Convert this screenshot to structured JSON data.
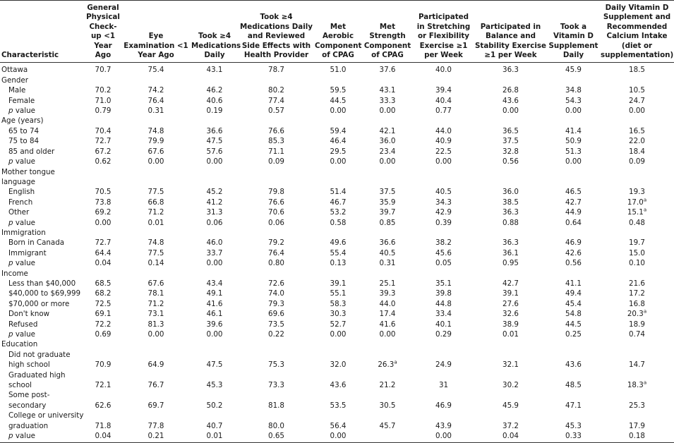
{
  "table": {
    "columns": [
      "Characteristic",
      "General Physical Check-up <1 Year Ago",
      "Eye Examination <1 Year Ago",
      "Took ≥4 Medications Daily",
      "Took ≥4 Medications Daily and Reviewed Side Effects with Health Provider",
      "Met Aerobic Component of CPAG",
      "Met Strength Component of CPAG",
      "Participated in Stretching or Flexibility Exercise ≥1 per Week",
      "Participated in Balance and Stability Exercise ≥1 per Week",
      "Took a Vitamin D Supplement Daily",
      "Daily Vitamin D Supplement and Recommended Calcium Intake (diet or supplementation)"
    ],
    "overall": {
      "label": "Ottawa",
      "cells": [
        "70.7",
        "75.4",
        "43.1",
        "78.7",
        "51.0",
        "37.6",
        "40.0",
        "36.3",
        "45.9",
        "18.5"
      ]
    },
    "groups": [
      {
        "title": "Gender",
        "rows": [
          {
            "label": "Male",
            "cells": [
              "70.2",
              "74.2",
              "46.2",
              "80.2",
              "59.5",
              "43.1",
              "39.4",
              "26.8",
              "34.8",
              "10.5"
            ]
          },
          {
            "label": "Female",
            "cells": [
              "71.0",
              "76.4",
              "40.6",
              "77.4",
              "44.5",
              "33.3",
              "40.4",
              "43.6",
              "54.3",
              "24.7"
            ]
          },
          {
            "label": "p value",
            "cells": [
              "0.79",
              "0.31",
              "0.19",
              "0.57",
              "0.00",
              "0.00",
              "0.77",
              "0.00",
              "0.00",
              "0.00"
            ]
          }
        ]
      },
      {
        "title": "Age (years)",
        "rows": [
          {
            "label": "65 to 74",
            "cells": [
              "70.4",
              "74.8",
              "36.6",
              "76.6",
              "59.4",
              "42.1",
              "44.0",
              "36.5",
              "41.4",
              "16.5"
            ]
          },
          {
            "label": "75 to 84",
            "cells": [
              "72.7",
              "79.9",
              "47.5",
              "85.3",
              "46.4",
              "36.0",
              "40.9",
              "37.5",
              "50.9",
              "22.0"
            ]
          },
          {
            "label": "85 and older",
            "cells": [
              "67.2",
              "67.6",
              "57.6",
              "71.1",
              "29.5",
              "23.4",
              "22.5",
              "32.8",
              "51.3",
              "18.4"
            ]
          },
          {
            "label": "p value",
            "cells": [
              "0.62",
              "0.00",
              "0.00",
              "0.09",
              "0.00",
              "0.00",
              "0.00",
              "0.56",
              "0.00",
              "0.09"
            ]
          }
        ]
      },
      {
        "title": "Mother tongue language",
        "rows": [
          {
            "label": "English",
            "cells": [
              "70.5",
              "77.5",
              "45.2",
              "79.8",
              "51.4",
              "37.5",
              "40.5",
              "36.0",
              "46.5",
              "19.3"
            ]
          },
          {
            "label": "French",
            "cells": [
              "73.8",
              "66.8",
              "41.2",
              "76.6",
              "46.7",
              "35.9",
              "34.3",
              "38.5",
              "42.7",
              {
                "text": "17.0",
                "note": "a"
              }
            ]
          },
          {
            "label": "Other",
            "cells": [
              "69.2",
              "71.2",
              "31.3",
              "70.6",
              "53.2",
              "39.7",
              "42.9",
              "36.3",
              "44.9",
              {
                "text": "15.1",
                "note": "a"
              }
            ]
          },
          {
            "label": "p value",
            "cells": [
              "0.00",
              "0.01",
              "0.06",
              "0.06",
              "0.58",
              "0.85",
              "0.39",
              "0.88",
              "0.64",
              "0.48"
            ]
          }
        ]
      },
      {
        "title": "Immigration",
        "rows": [
          {
            "label": "Born in Canada",
            "cells": [
              "72.7",
              "74.8",
              "46.0",
              "79.2",
              "49.6",
              "36.6",
              "38.2",
              "36.3",
              "46.9",
              "19.7"
            ]
          },
          {
            "label": "Immigrant",
            "cells": [
              "64.4",
              "77.5",
              "33.7",
              "76.4",
              "55.4",
              "40.5",
              "45.6",
              "36.1",
              "42.6",
              "15.0"
            ]
          },
          {
            "label": "p value",
            "cells": [
              "0.04",
              "0.14",
              "0.00",
              "0.80",
              "0.13",
              "0.31",
              "0.05",
              "0.95",
              "0.56",
              "0.10"
            ]
          }
        ]
      },
      {
        "title": "Income",
        "rows": [
          {
            "label": "Less than $40,000",
            "cells": [
              "68.5",
              "67.6",
              "43.4",
              "72.6",
              "39.1",
              "25.1",
              "35.1",
              "42.7",
              "41.1",
              "21.6"
            ]
          },
          {
            "label": "$40,000 to $69,999",
            "cells": [
              "68.2",
              "78.1",
              "49.1",
              "74.0",
              "55.1",
              "39.3",
              "39.8",
              "39.1",
              "49.4",
              "17.2"
            ]
          },
          {
            "label": "$70,000 or more",
            "cells": [
              "72.5",
              "71.2",
              "41.6",
              "79.3",
              "58.3",
              "44.0",
              "44.8",
              "27.6",
              "45.4",
              "16.8"
            ]
          },
          {
            "label": "Don't know",
            "cells": [
              "69.1",
              "73.1",
              "46.1",
              "69.6",
              "30.3",
              "17.4",
              "33.4",
              "32.6",
              "54.8",
              {
                "text": "20.3",
                "note": "a"
              }
            ]
          },
          {
            "label": "Refused",
            "cells": [
              "72.2",
              "81.3",
              "39.6",
              "73.5",
              "52.7",
              "41.6",
              "40.1",
              "38.9",
              "44.5",
              "18.9"
            ]
          },
          {
            "label": "p value",
            "cells": [
              "0.69",
              "0.00",
              "0.00",
              "0.22",
              "0.00",
              "0.00",
              "0.29",
              "0.01",
              "0.25",
              "0.74"
            ]
          }
        ]
      },
      {
        "title": "Education",
        "rows": [
          {
            "label": "Did not graduate high school",
            "cells": [
              "70.9",
              "64.9",
              "47.5",
              "75.3",
              "32.0",
              {
                "text": "26.3",
                "note": "a"
              },
              "24.9",
              "32.1",
              "43.6",
              "14.7"
            ]
          },
          {
            "label": "Graduated high school",
            "cells": [
              "72.1",
              "76.7",
              "45.3",
              "73.3",
              "43.6",
              "21.2",
              "31",
              "30.2",
              "48.5",
              {
                "text": "18.3",
                "note": "a"
              }
            ]
          },
          {
            "label": "Some post-secondary",
            "cells": [
              "62.6",
              "69.7",
              "50.2",
              "81.8",
              "53.5",
              "30.5",
              "46.9",
              "45.9",
              "47.1",
              "25.3"
            ]
          },
          {
            "label": "College or university graduation",
            "cells": [
              "71.8",
              "77.8",
              "40.7",
              "80.0",
              "56.4",
              "45.7",
              "43.9",
              "37.2",
              "45.3",
              "17.9"
            ]
          },
          {
            "label": "p value",
            "cells": [
              "0.04",
              "0.21",
              "0.01",
              "0.65",
              "0.00",
              null,
              "0.00",
              "0.04",
              "0.33",
              "0.18"
            ]
          }
        ]
      }
    ]
  }
}
